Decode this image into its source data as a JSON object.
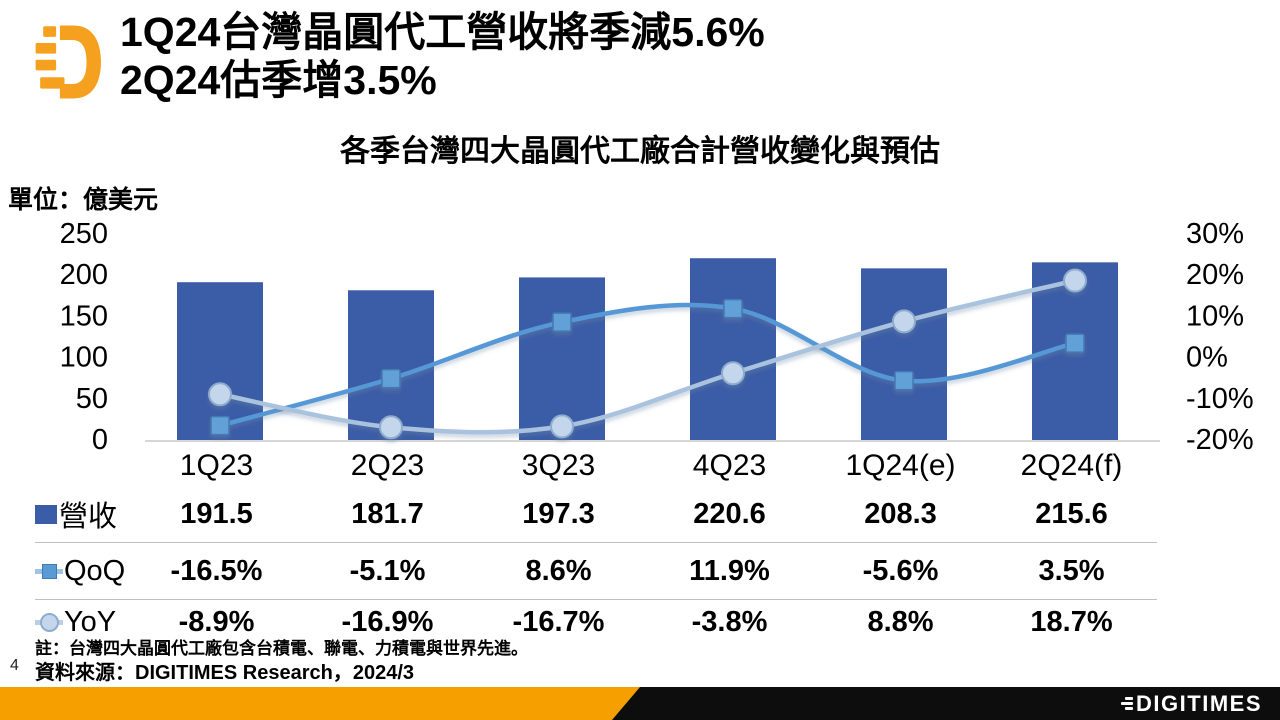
{
  "header": {
    "title_line1": "1Q24台灣晶圓代工營收將季減5.6%",
    "title_line2": "2Q24估季增3.5%"
  },
  "chart_title": "各季台灣四大晶圓代工廠合計營收變化與預估",
  "unit_label": "單位：億美元",
  "chart_data": {
    "type": "bar",
    "subtype": "combo-bar-line",
    "title": "各季台灣四大晶圓代工廠合計營收變化與預估",
    "unit": "單位：億美元",
    "categories": [
      "1Q23",
      "2Q23",
      "3Q23",
      "4Q23",
      "1Q24(e)",
      "2Q24(f)"
    ],
    "series": [
      {
        "name": "營收",
        "type": "bar",
        "axis": "left",
        "values": [
          191.5,
          181.7,
          197.3,
          220.6,
          208.3,
          215.6
        ]
      },
      {
        "name": "QoQ",
        "type": "line",
        "axis": "right",
        "marker": "square",
        "values": [
          -16.5,
          -5.1,
          8.6,
          11.9,
          -5.6,
          3.5
        ]
      },
      {
        "name": "YoY",
        "type": "line",
        "axis": "right",
        "marker": "circle",
        "values": [
          -8.9,
          -16.9,
          -16.7,
          -3.8,
          8.8,
          18.7
        ]
      }
    ],
    "left_axis": {
      "min": 0,
      "max": 250,
      "ticks": [
        250,
        200,
        150,
        100,
        50,
        0
      ]
    },
    "right_axis": {
      "min": -20,
      "max": 30,
      "ticks": [
        "30%",
        "20%",
        "10%",
        "0%",
        "-10%",
        "-20%"
      ]
    },
    "grid": "off",
    "legend_position": "table-left",
    "colors": {
      "bar": "#3B5CA6",
      "qoq_line": "#5598D5",
      "qoq_marker_fill": "#62A0D8",
      "qoq_marker_stroke": "#4579B2",
      "yoy_line": "#A9C2DE",
      "yoy_marker_fill": "#C3D6EC",
      "yoy_marker_stroke": "#8FACCE",
      "axis_line": "#C9C9C9"
    }
  },
  "table": {
    "rows": [
      {
        "key": "revenue",
        "label": "營收",
        "icon": "bar",
        "values": [
          "191.5",
          "181.7",
          "197.3",
          "220.6",
          "208.3",
          "215.6"
        ]
      },
      {
        "key": "qoq",
        "label": "QoQ",
        "icon": "qoq",
        "values": [
          "-16.5%",
          "-5.1%",
          "8.6%",
          "11.9%",
          "-5.6%",
          "3.5%"
        ]
      },
      {
        "key": "yoy",
        "label": "YoY",
        "icon": "yoy",
        "values": [
          "-8.9%",
          "-16.9%",
          "-16.7%",
          "-3.8%",
          "8.8%",
          "18.7%"
        ]
      }
    ]
  },
  "notes": {
    "note": "註：台灣四大晶圓代工廠包含台積電、聯電、力積電與世界先進。",
    "source": "資料來源：DIGITIMES Research，2024/3"
  },
  "page_number": "4",
  "footer": {
    "brand": "DIGITIMES",
    "orange_color": "#F5A000",
    "black_color": "#0D0D0D"
  },
  "logo_color": "#F5A01E"
}
